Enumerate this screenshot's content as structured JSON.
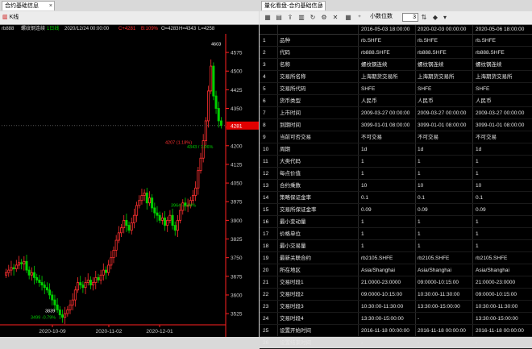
{
  "left_pane": {
    "tab_label": "合约基础信息",
    "toolbar": {
      "kline_label": "K线",
      "symbol_label": "rb888",
      "symbol_name": "螺纹钢连续",
      "period_label": "1日线"
    },
    "info_bar": {
      "date": "2020/12/24 00:00:00",
      "change": "C+4281",
      "bid": "B:109%",
      "open": "O=4283",
      "high": "H=4343",
      "low": "L=4258"
    },
    "colors": {
      "up": "#ff3030",
      "down": "#00d000",
      "axis": "#ff2020",
      "price_tag": "#e00000"
    }
  },
  "chart_data": {
    "type": "candlestick",
    "y_ticks": [
      "4575",
      "4500",
      "4425",
      "4350",
      "4275",
      "4200",
      "4125",
      "4050",
      "3975",
      "3900",
      "3825",
      "3750",
      "3675",
      "3600",
      "3525"
    ],
    "ylim": [
      3480,
      4640
    ],
    "x_ticks": [
      "2020-10-09",
      "2020-11-02",
      "2020-12-01"
    ],
    "current_price": "4281",
    "annotations": [
      {
        "text": "4603",
        "y": 4603
      },
      {
        "text": "4207 (1.18%)",
        "y": 4207
      },
      {
        "text": "4343 / 7.06%",
        "y": 4190
      },
      {
        "text": "3964 -0.44%",
        "y": 3955
      },
      {
        "text": "3499 -0.79%",
        "y": 3505
      },
      {
        "text": "3839",
        "y": 3530
      }
    ],
    "close_series": [
      3690,
      3700,
      3710,
      3705,
      3720,
      3730,
      3725,
      3735,
      3700,
      3680,
      3690,
      3670,
      3660,
      3650,
      3640,
      3630,
      3620,
      3600,
      3580,
      3560,
      3540,
      3520,
      3510,
      3525,
      3540,
      3560,
      3580,
      3620,
      3650,
      3640,
      3630,
      3650,
      3660,
      3640,
      3650,
      3670,
      3660,
      3680,
      3700,
      3690,
      3720,
      3750,
      3780,
      3820,
      3850,
      3870,
      3900,
      3880,
      3860,
      3890,
      3920,
      3960,
      3980,
      4000,
      4010,
      3970,
      3990,
      3950,
      3930,
      3920,
      3900,
      3910,
      3880,
      3900,
      3920,
      3880,
      3860,
      3900,
      3940,
      3970,
      3960,
      3960,
      3980,
      4000,
      4030,
      4100,
      4150,
      4220,
      4300,
      4420,
      4520,
      4400,
      4350,
      4300,
      4281
    ],
    "series": [
      {
        "name": "rb888"
      }
    ]
  },
  "right_pane": {
    "tab_label": "量化看盘-合约基础信息",
    "toolbar": {
      "decimal_label": "小数位数",
      "decimal_value": "3"
    },
    "columns": [
      "",
      "",
      "2016-05-03 18:00:00",
      "2020-02-03 00:00:00",
      "2020-05-06 18:00:00"
    ],
    "rows": [
      [
        "1",
        "品种",
        "rb.SHFE",
        "rb.SHFE",
        "rb.SHFE"
      ],
      [
        "2",
        "代码",
        "rb888.SHFE",
        "rb888.SHFE",
        "rb888.SHFE"
      ],
      [
        "3",
        "名称",
        "螺纹钢连续",
        "螺纹钢连续",
        "螺纹钢连续"
      ],
      [
        "4",
        "交易所名称",
        "上海期货交易所",
        "上海期货交易所",
        "上海期货交易所"
      ],
      [
        "5",
        "交易所代码",
        "SHFE",
        "SHFE",
        "SHFE"
      ],
      [
        "6",
        "货币类型",
        "人民币",
        "人民币",
        "人民币"
      ],
      [
        "7",
        "上市时间",
        "2009-03-27 00:00:00",
        "2009-03-27 00:00:00",
        "2009-03-27 00:00:00"
      ],
      [
        "8",
        "到期时间",
        "3099-01-01 08:00:00",
        "3099-01-01 08:00:00",
        "3099-01-01 08:00:00"
      ],
      [
        "9",
        "当前可否交易",
        "不可交易",
        "不可交易",
        "不可交易"
      ],
      [
        "10",
        "周期",
        "1d",
        "1d",
        "1d"
      ],
      [
        "11",
        "大类代码",
        "1",
        "1",
        "1"
      ],
      [
        "12",
        "每点价值",
        "1",
        "1",
        "1"
      ],
      [
        "13",
        "合约乘数",
        "10",
        "10",
        "10"
      ],
      [
        "14",
        "策略保证金率",
        "0.1",
        "0.1",
        "0.1"
      ],
      [
        "15",
        "交易所保证金率",
        "0.09",
        "0.09",
        "0.09"
      ],
      [
        "16",
        "最小变动量",
        "1",
        "1",
        "1"
      ],
      [
        "17",
        "价格单位",
        "1",
        "1",
        "1"
      ],
      [
        "18",
        "最小交易量",
        "1",
        "1",
        "1"
      ],
      [
        "19",
        "最新关联合约",
        "rb2105.SHFE",
        "rb2105.SHFE",
        "rb2105.SHFE"
      ],
      [
        "20",
        "所在地区",
        "Asia/Shanghai",
        "Asia/Shanghai",
        "Asia/Shanghai"
      ],
      [
        "21",
        "交易时段1",
        "21:0000-23:0000",
        "09:0000-10:15:00",
        "21:0000-23:0000"
      ],
      [
        "22",
        "交易时段2",
        "09:0000-10:15:00",
        "10:30:00-11:30:00",
        "09:0000-10:15:00"
      ],
      [
        "23",
        "交易时段3",
        "10:30:00-11:30:00",
        "13:30:00-15:00:00",
        "10:30:00-11:30:00"
      ],
      [
        "24",
        "交易时段4",
        "13:30:00-15:00:00",
        "-",
        "13:30:00-15:00:00"
      ],
      [
        "25",
        "设置开始时间",
        "2016-11-18 00:00:00",
        "2016-11-18 00:00:00",
        "2016-11-18 00:00:00"
      ],
      [
        "26",
        "设置结束时间",
        "-",
        "-",
        "-"
      ]
    ]
  }
}
